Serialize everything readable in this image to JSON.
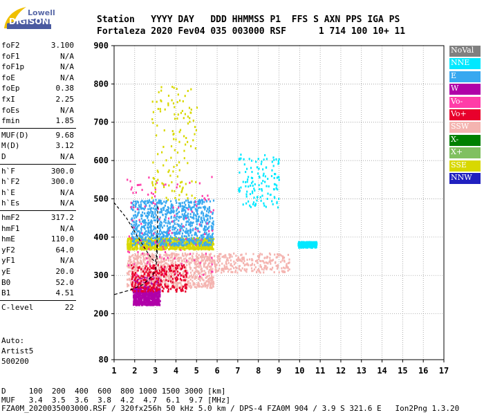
{
  "logo": {
    "line1": "Lowell",
    "line2": "DIGISONDE"
  },
  "header": {
    "line1": "Station   YYYY DAY   DDD HHMMSS P1  FFS S AXN PPS IGA PS",
    "line2": "Fortaleza 2020 Fev04 035 003000 RSF      1 714 100 10+ 11"
  },
  "params": [
    {
      "name": "foF2",
      "value": "3.100"
    },
    {
      "name": "foF1",
      "value": "N/A"
    },
    {
      "name": "foF1p",
      "value": "N/A"
    },
    {
      "name": "foE",
      "value": "N/A"
    },
    {
      "name": "foEp",
      "value": "0.38"
    },
    {
      "name": "fxI",
      "value": "2.25"
    },
    {
      "name": "foEs",
      "value": "N/A"
    },
    {
      "name": "fmin",
      "value": "1.85"
    },
    {
      "name": "MUF(D)",
      "value": "9.68"
    },
    {
      "name": "M(D)",
      "value": "3.12"
    },
    {
      "name": "D",
      "value": "N/A"
    },
    {
      "name": "h`F",
      "value": "300.0"
    },
    {
      "name": "h`F2",
      "value": "300.0"
    },
    {
      "name": "h`E",
      "value": "N/A"
    },
    {
      "name": "h`Es",
      "value": "N/A"
    },
    {
      "name": "hmF2",
      "value": "317.2"
    },
    {
      "name": "hmF1",
      "value": "N/A"
    },
    {
      "name": "hmE",
      "value": "110.0"
    },
    {
      "name": "yF2",
      "value": "64.0"
    },
    {
      "name": "yF1",
      "value": "N/A"
    },
    {
      "name": "yE",
      "value": "20.0"
    },
    {
      "name": "B0",
      "value": "52.0"
    },
    {
      "name": "B1",
      "value": "4.51"
    },
    {
      "name": "C-level",
      "value": "22"
    }
  ],
  "auto": {
    "line1": "Auto:",
    "line2": "Artist5",
    "line3": "500200"
  },
  "legend": [
    {
      "label": "NoVal",
      "color": "#808080"
    },
    {
      "label": "NNE",
      "color": "#00e8ff"
    },
    {
      "label": "E",
      "color": "#38a8f0"
    },
    {
      "label": "W",
      "color": "#b000a8"
    },
    {
      "label": "Vo-",
      "color": "#ff3ca8"
    },
    {
      "label": "Vo+",
      "color": "#e8002c"
    },
    {
      "label": "SSW",
      "color": "#f4b4b0"
    },
    {
      "label": "X-",
      "color": "#008000"
    },
    {
      "label": "X+",
      "color": "#80c060"
    },
    {
      "label": "SSE",
      "color": "#d8d800"
    },
    {
      "label": "NNW",
      "color": "#2020c0"
    }
  ],
  "footer": {
    "line1": "D     100  200  400  600  800 1000 1500 3000 [km]",
    "line2": "MUF   3.4  3.5  3.6  3.8  4.2  4.7  6.1  9.7 [MHz]",
    "line3": "FZA0M_2020035003000.RSF / 320fx256h 50 kHz 5.0 km / DPS-4 FZA0M 904 / 3.9 S 321.6 E   Ion2Png 1.3.20"
  },
  "chart_data": {
    "type": "scatter",
    "xlim": [
      1,
      17
    ],
    "ylim": [
      80,
      900
    ],
    "xticks": [
      1,
      2,
      3,
      4,
      5,
      6,
      7,
      8,
      9,
      10,
      11,
      12,
      13,
      14,
      15,
      16,
      17
    ],
    "yticks": [
      80,
      200,
      300,
      400,
      500,
      600,
      700,
      800,
      900
    ],
    "grid": true,
    "echo_clusters": [
      {
        "mode": "W",
        "x": [
          1.9,
          3.2
        ],
        "y": [
          225,
          300
        ],
        "density": "high"
      },
      {
        "mode": "SSW",
        "x": [
          1.6,
          5.8
        ],
        "y": [
          270,
          360
        ],
        "density": "high"
      },
      {
        "mode": "SSW",
        "x": [
          5.8,
          9.5
        ],
        "y": [
          310,
          360
        ],
        "density": "medium"
      },
      {
        "mode": "SSE",
        "x": [
          1.6,
          5.8
        ],
        "y": [
          370,
          400
        ],
        "density": "high"
      },
      {
        "mode": "E",
        "x": [
          1.8,
          5.8
        ],
        "y": [
          380,
          500
        ],
        "density": "high"
      },
      {
        "mode": "NNE",
        "x": [
          9.9,
          10.8
        ],
        "y": [
          375,
          390
        ],
        "density": "medium"
      },
      {
        "mode": "Vo-",
        "x": [
          1.6,
          5.8
        ],
        "y": [
          300,
          560
        ],
        "density": "low"
      },
      {
        "mode": "Vo+",
        "x": [
          1.8,
          4.5
        ],
        "y": [
          260,
          330
        ],
        "density": "medium"
      },
      {
        "mode": "SSE",
        "x": [
          2.8,
          5.0
        ],
        "y": [
          500,
          800
        ],
        "density": "low"
      },
      {
        "mode": "NNE",
        "x": [
          7.0,
          9.0
        ],
        "y": [
          480,
          620
        ],
        "density": "low"
      }
    ],
    "traces": [
      {
        "name": "O-trace",
        "points": [
          [
            1.0,
            490
          ],
          [
            1.6,
            450
          ],
          [
            2.1,
            405
          ],
          [
            2.5,
            370
          ],
          [
            2.8,
            345
          ],
          [
            3.0,
            335
          ],
          [
            3.05,
            350
          ],
          [
            3.08,
            380
          ],
          [
            3.1,
            430
          ],
          [
            3.12,
            480
          ]
        ]
      },
      {
        "name": "profile",
        "points": [
          [
            1.0,
            250
          ],
          [
            1.8,
            262
          ],
          [
            2.4,
            276
          ],
          [
            2.8,
            296
          ],
          [
            3.0,
            312
          ],
          [
            3.08,
            340
          ],
          [
            3.1,
            380
          ]
        ]
      }
    ]
  }
}
